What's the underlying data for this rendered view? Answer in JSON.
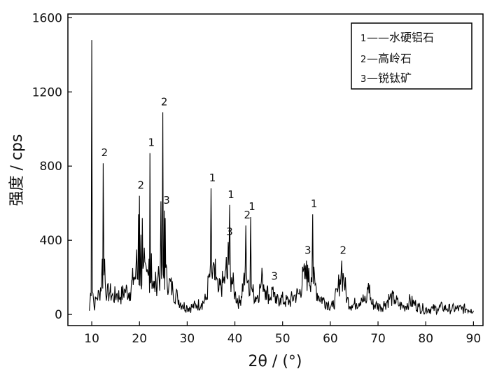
{
  "chart_data": {
    "type": "line",
    "title": "",
    "xlabel": "2θ / (°)",
    "ylabel": "强度 / cps",
    "xlim": [
      5,
      92
    ],
    "ylim": [
      -60,
      1620
    ],
    "x_ticks": [
      10,
      20,
      30,
      40,
      50,
      60,
      70,
      80,
      90
    ],
    "y_ticks": [
      0,
      400,
      800,
      1200,
      1600
    ],
    "grid": false,
    "legend_position": "top-right",
    "legend": [
      {
        "number": "1",
        "text": "——水硬铝石"
      },
      {
        "number": "2",
        "text": "—高岭石"
      },
      {
        "number": "3",
        "text": "—锐钛矿"
      }
    ],
    "peaks": [
      {
        "x": 10.0,
        "y": 1480,
        "label": ""
      },
      {
        "x": 12.4,
        "y": 815,
        "label": "2"
      },
      {
        "x": 20.0,
        "y": 640,
        "label": "2"
      },
      {
        "x": 22.2,
        "y": 870,
        "label": "1"
      },
      {
        "x": 24.9,
        "y": 1090,
        "label": "2"
      },
      {
        "x": 25.4,
        "y": 560,
        "label": "3"
      },
      {
        "x": 35.0,
        "y": 680,
        "label": "1"
      },
      {
        "x": 38.6,
        "y": 390,
        "label": "3"
      },
      {
        "x": 38.9,
        "y": 590,
        "label": "1"
      },
      {
        "x": 42.3,
        "y": 480,
        "label": "2"
      },
      {
        "x": 43.3,
        "y": 525,
        "label": "1"
      },
      {
        "x": 48.0,
        "y": 150,
        "label": "3"
      },
      {
        "x": 55.0,
        "y": 290,
        "label": "3"
      },
      {
        "x": 56.3,
        "y": 540,
        "label": "1"
      },
      {
        "x": 62.4,
        "y": 290,
        "label": "2"
      }
    ],
    "series": [
      {
        "x": [
          9.5,
          10.0,
          10.5,
          11.0,
          11.6,
          12.2,
          12.4,
          12.7,
          13.2,
          13.8,
          14.5,
          15.2,
          16.0,
          17.0,
          18.0,
          18.8,
          19.4,
          19.8,
          20.0,
          20.3,
          20.6,
          21.0,
          21.5,
          22.0,
          22.2,
          22.5,
          23.0,
          23.5,
          24.0,
          24.5,
          24.9,
          25.2,
          25.4,
          25.7,
          26.2,
          27.0,
          28.0,
          29.0,
          30.0,
          31.0,
          32.0,
          33.0,
          34.0,
          34.6,
          35.0,
          35.4,
          35.9,
          36.5,
          37.5,
          38.2,
          38.6,
          38.9,
          39.3,
          40.0,
          41.0,
          41.8,
          42.3,
          42.7,
          43.0,
          43.3,
          43.7,
          44.5,
          45.3,
          45.8,
          46.5,
          47.5,
          48.0,
          48.5,
          49.5,
          50.5,
          51.5,
          52.5,
          53.5,
          54.3,
          55.0,
          55.5,
          56.0,
          56.3,
          56.8,
          57.5,
          58.5,
          59.5,
          60.5,
          61.5,
          62.0,
          62.4,
          62.8,
          63.5,
          64.5,
          65.5,
          66.5,
          67.5,
          68.0,
          68.6,
          69.5,
          70.5,
          71.5,
          72.5,
          73.5,
          74.5,
          75.5,
          76.5,
          77.5,
          78.5,
          79.5,
          80.5,
          81.5,
          82.5,
          83.5,
          84.5,
          85.5,
          86.5,
          87.5,
          88.5,
          89.5,
          90.0
        ],
        "y": [
          20,
          1480,
          40,
          90,
          110,
          300,
          815,
          300,
          110,
          120,
          90,
          110,
          95,
          130,
          120,
          200,
          350,
          540,
          640,
          430,
          520,
          360,
          230,
          300,
          870,
          330,
          140,
          170,
          260,
          610,
          1090,
          560,
          520,
          250,
          170,
          130,
          90,
          50,
          40,
          40,
          50,
          60,
          80,
          220,
          680,
          260,
          300,
          120,
          170,
          310,
          390,
          590,
          200,
          110,
          60,
          180,
          480,
          180,
          100,
          525,
          120,
          90,
          140,
          200,
          130,
          90,
          150,
          60,
          90,
          70,
          70,
          100,
          110,
          230,
          290,
          250,
          200,
          540,
          160,
          100,
          80,
          60,
          40,
          120,
          190,
          290,
          200,
          80,
          50,
          60,
          90,
          60,
          170,
          60,
          50,
          40,
          60,
          90,
          80,
          50,
          40,
          70,
          60,
          40,
          30,
          30,
          30,
          30,
          40,
          30,
          30,
          30,
          30,
          30,
          30,
          20
        ]
      }
    ]
  }
}
